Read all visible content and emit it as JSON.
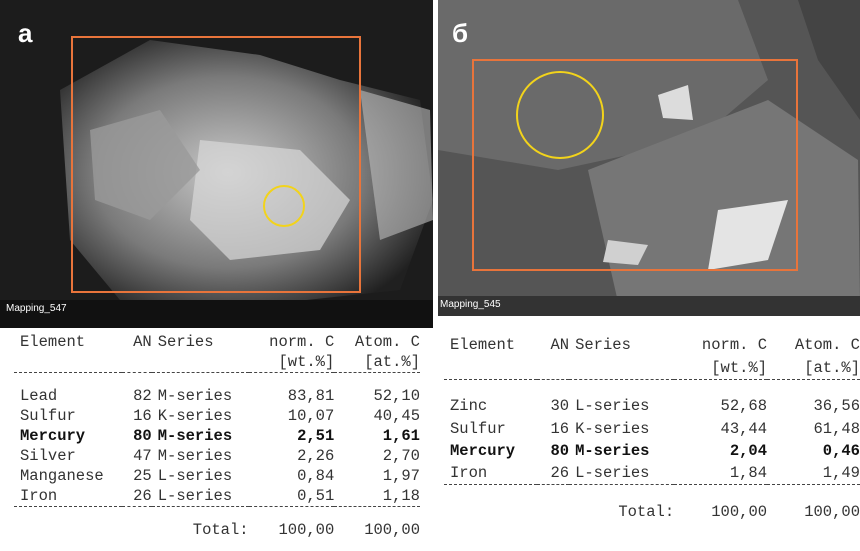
{
  "panels": [
    {
      "label": "а",
      "caption": "Mapping_547",
      "table": {
        "header": [
          "Element",
          "AN",
          "Series",
          "norm. C",
          "Atom. C"
        ],
        "units": [
          "[wt.%]",
          "[at.%]"
        ],
        "rows": [
          {
            "cells": [
              "Lead",
              "82",
              "M-series",
              "83,81",
              "52,10"
            ]
          },
          {
            "cells": [
              "Sulfur",
              "16",
              "K-series",
              "10,07",
              "40,45"
            ]
          },
          {
            "cells": [
              "Mercury",
              "80",
              "M-series",
              "2,51",
              "1,61"
            ],
            "bold": true
          },
          {
            "cells": [
              "Silver",
              "47",
              "M-series",
              "2,26",
              "2,70"
            ]
          },
          {
            "cells": [
              "Manganese",
              "25",
              "L-series",
              "0,84",
              "1,97"
            ]
          },
          {
            "cells": [
              "Iron",
              "26",
              "L-series",
              "0,51",
              "1,18"
            ]
          }
        ],
        "total_label": "Total:",
        "total": [
          "100,00",
          "100,00"
        ]
      }
    },
    {
      "label": "б",
      "caption": "Mapping_545",
      "table": {
        "header": [
          "Element",
          "AN",
          "Series",
          "norm. C",
          "Atom. C"
        ],
        "units": [
          "[wt.%]",
          "[at.%]"
        ],
        "rows": [
          {
            "cells": [
              "Zinc",
              "30",
              "L-series",
              "52,68",
              "36,56"
            ]
          },
          {
            "cells": [
              "Sulfur",
              "16",
              "K-series",
              "43,44",
              "61,48"
            ]
          },
          {
            "cells": [
              "Mercury",
              "80",
              "M-series",
              "2,04",
              "0,46"
            ],
            "bold": true
          },
          {
            "cells": [
              "Iron",
              "26",
              "L-series",
              "1,84",
              "1,49"
            ]
          }
        ],
        "total_label": "Total:",
        "total": [
          "100,00",
          "100,00"
        ]
      }
    }
  ]
}
